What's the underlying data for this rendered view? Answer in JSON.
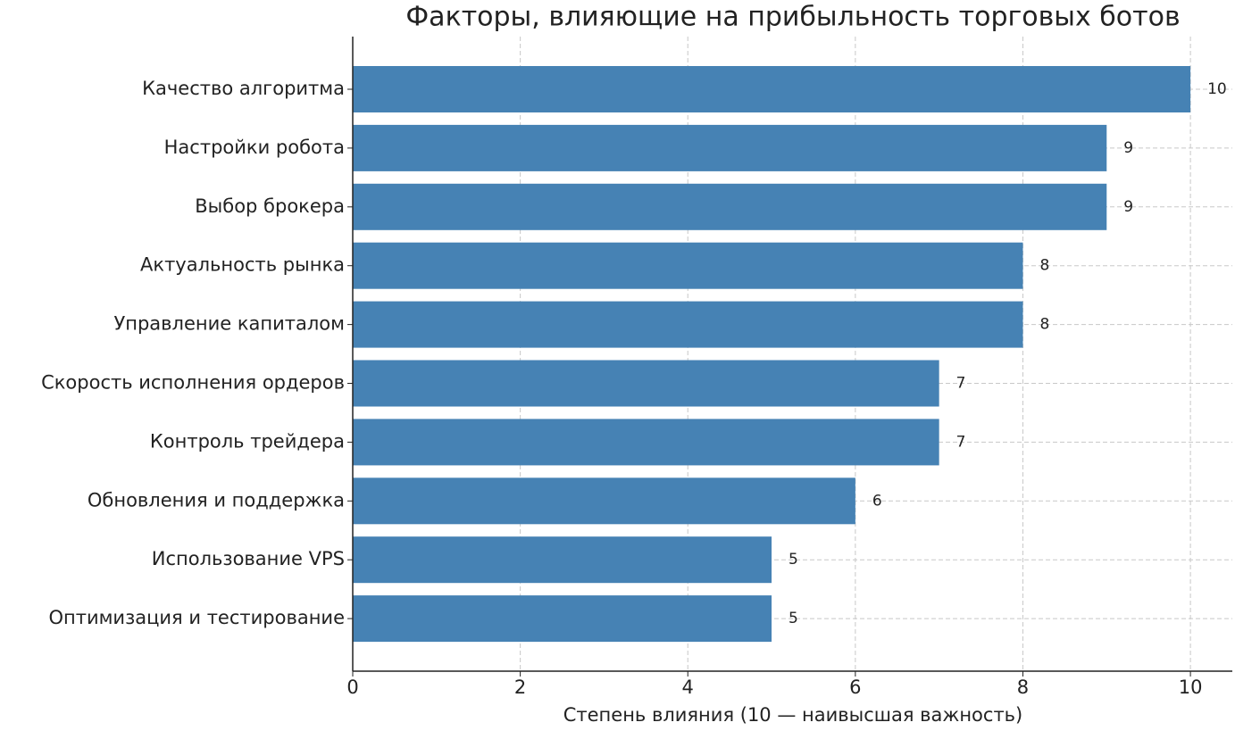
{
  "chart_data": {
    "type": "barh",
    "title": "Факторы, влияющие на прибыльность торговых ботов",
    "x_label": "Степень влияния (10 — наивысшая важность)",
    "categories": [
      "Качество алгоритма",
      "Настройки робота",
      "Выбор брокера",
      "Актуальность рынка",
      "Управление капиталом",
      "Скорость исполнения ордеров",
      "Контроль трейдера",
      "Обновления и поддержка",
      "Использование VPS",
      "Оптимизация и тестирование"
    ],
    "values": [
      10,
      9,
      9,
      8,
      8,
      7,
      7,
      6,
      5,
      5
    ],
    "color": "#4682b4",
    "xlim": [
      0,
      10.5
    ],
    "xticks": [
      0,
      2,
      4,
      6,
      8,
      10
    ],
    "grid": true
  }
}
